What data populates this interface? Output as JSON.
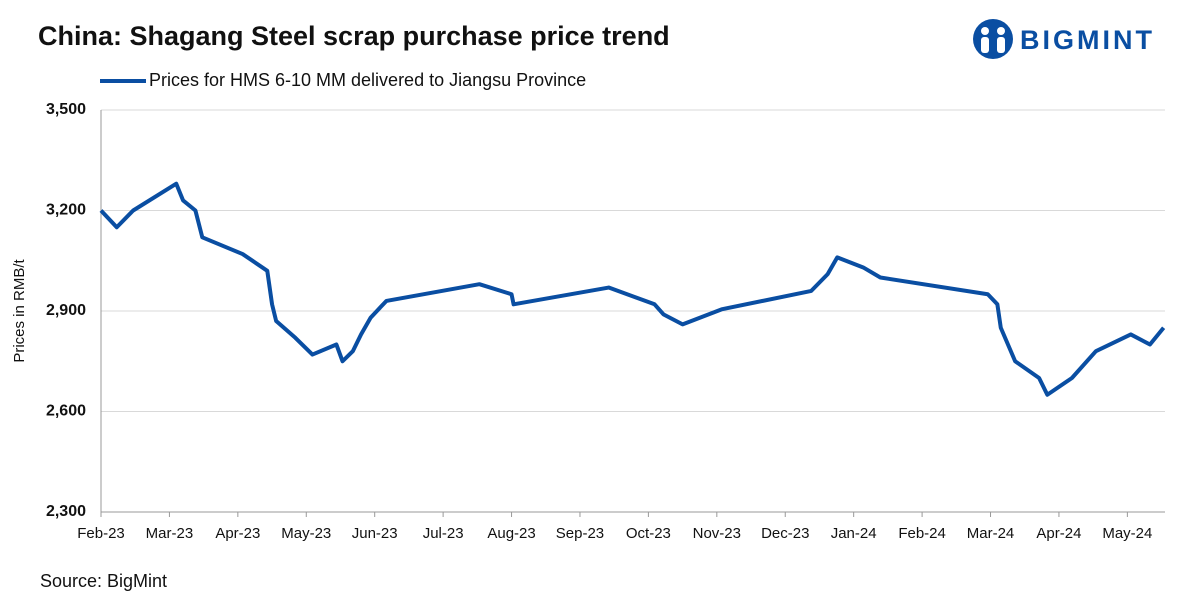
{
  "chart_data": {
    "type": "line",
    "title": "China: Shagang Steel scrap purchase price trend",
    "brand": "BIGMINT",
    "y_label": "Prices in RMB/t",
    "source": "Source: BigMint",
    "x": [
      0,
      0.23,
      0.47,
      1.1,
      1.2,
      1.38,
      1.48,
      2.07,
      2.43,
      2.5,
      2.56,
      2.84,
      3.09,
      3.44,
      3.53,
      3.68,
      3.8,
      3.94,
      4.17,
      5.53,
      6.0,
      6.03,
      7.42,
      8.09,
      8.22,
      8.5,
      9.07,
      10.38,
      10.62,
      10.76,
      11.14,
      11.39,
      12.96,
      13.1,
      13.15,
      13.36,
      13.71,
      13.83,
      14.19,
      14.54,
      15.05,
      15.33,
      15.53
    ],
    "series": [
      {
        "name": "Prices for HMS 6-10 MM delivered to Jiangsu Province",
        "color": "#0a4ea2",
        "values": [
          3200,
          3150,
          3200,
          3280,
          3230,
          3200,
          3120,
          3070,
          3020,
          2920,
          2870,
          2820,
          2770,
          2800,
          2750,
          2780,
          2830,
          2880,
          2930,
          2980,
          2950,
          2920,
          2970,
          2920,
          2890,
          2860,
          2905,
          2960,
          3010,
          3060,
          3030,
          3000,
          2950,
          2920,
          2850,
          2750,
          2700,
          2650,
          2700,
          2780,
          2830,
          2800,
          2850
        ]
      }
    ],
    "xlim": [
      0,
      15.55
    ],
    "xticks": [
      {
        "value": 0,
        "label": "Feb-23"
      },
      {
        "value": 1,
        "label": "Mar-23"
      },
      {
        "value": 2,
        "label": "Apr-23"
      },
      {
        "value": 3,
        "label": "May-23"
      },
      {
        "value": 4,
        "label": "Jun-23"
      },
      {
        "value": 5,
        "label": "Jul-23"
      },
      {
        "value": 6,
        "label": "Aug-23"
      },
      {
        "value": 7,
        "label": "Sep-23"
      },
      {
        "value": 8,
        "label": "Oct-23"
      },
      {
        "value": 9,
        "label": "Nov-23"
      },
      {
        "value": 10,
        "label": "Dec-23"
      },
      {
        "value": 11,
        "label": "Jan-24"
      },
      {
        "value": 12,
        "label": "Feb-24"
      },
      {
        "value": 13,
        "label": "Mar-24"
      },
      {
        "value": 14,
        "label": "Apr-24"
      },
      {
        "value": 15,
        "label": "May-24"
      }
    ],
    "ylim": [
      2300,
      3500
    ],
    "yticks": [
      {
        "value": 2300,
        "label": "2,300"
      },
      {
        "value": 2600,
        "label": "2,600"
      },
      {
        "value": 2900,
        "label": "2,900"
      },
      {
        "value": 3200,
        "label": "3,200"
      },
      {
        "value": 3500,
        "label": "3,500"
      }
    ],
    "grid": true
  }
}
